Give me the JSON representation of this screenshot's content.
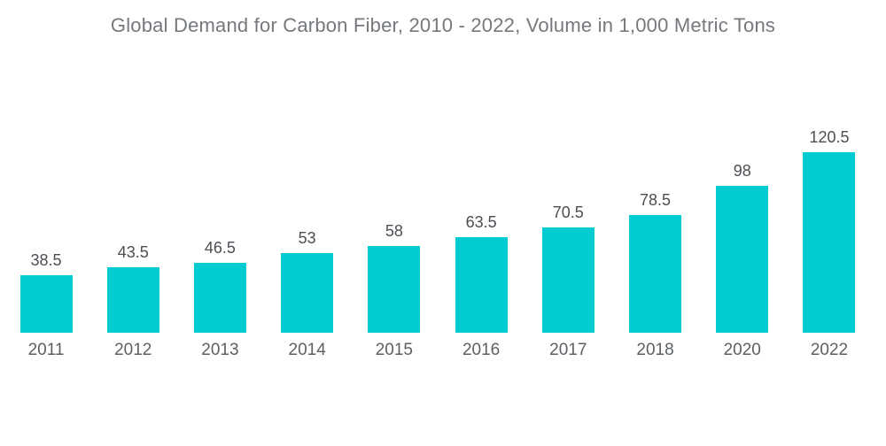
{
  "chart_data": {
    "type": "bar",
    "title": "Global Demand for Carbon Fiber, 2010 - 2022, Volume in 1,000 Metric Tons",
    "categories": [
      "2011",
      "2012",
      "2013",
      "2014",
      "2015",
      "2016",
      "2017",
      "2018",
      "2020",
      "2022"
    ],
    "values": [
      38.5,
      43.5,
      46.5,
      53,
      58,
      63.5,
      70.5,
      78.5,
      98,
      120.5
    ],
    "value_labels": [
      "38.5",
      "43.5",
      "46.5",
      "53",
      "58",
      "63.5",
      "70.5",
      "78.5",
      "98",
      "120.5"
    ],
    "xlabel": "",
    "ylabel": "",
    "ylim": [
      0,
      130
    ],
    "grid": false,
    "legend": "none",
    "bar_color": "#02cbd2",
    "value_label_color": "#4b4f54",
    "axis_label_color": "#5c6064",
    "title_color": "#75787d"
  }
}
